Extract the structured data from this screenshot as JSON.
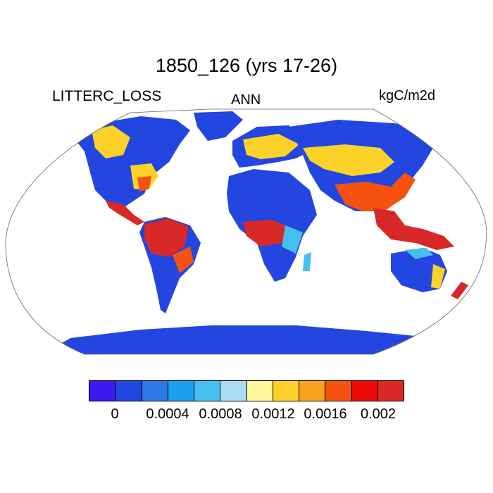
{
  "title": "1850_126 (yrs 17-26)",
  "left_label": "LITTERC_LOSS",
  "center_label": "ANN",
  "right_label": "kgC/m2d",
  "colorbar": {
    "colors": [
      "#3b18f0",
      "#2346e0",
      "#2e77e8",
      "#1aa0f2",
      "#45bff0",
      "#a9dcf3",
      "#fff799",
      "#fcd22a",
      "#f7a11c",
      "#f55210",
      "#ef0b0b",
      "#d82828"
    ],
    "tick_labels": [
      "0",
      "0.0004",
      "0.0008",
      "0.0012",
      "0.0016",
      "0.002"
    ]
  },
  "map_colors": {
    "ocean": "#ffffff",
    "low": "#2346e0",
    "midlow": "#45bff0",
    "mid": "#fcd22a",
    "high": "#f55210",
    "veryhigh": "#d82828"
  }
}
